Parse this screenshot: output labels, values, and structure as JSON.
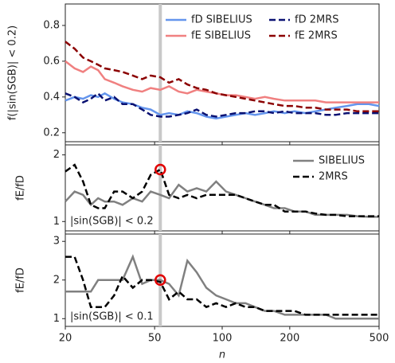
{
  "chart_data": [
    {
      "type": "line",
      "ylabel": "f(|sin(SGB)| < 0.2)",
      "xscale": "log",
      "xlim": [
        20,
        500
      ],
      "xticks": [
        20,
        50,
        100,
        200,
        500
      ],
      "ylim": [
        0.15,
        0.92
      ],
      "yticks": [
        0.2,
        0.4,
        0.6,
        0.8
      ],
      "vline": 53,
      "legend": "top-right",
      "x": [
        20,
        22,
        24,
        26,
        28,
        30,
        33,
        36,
        40,
        44,
        48,
        53,
        58,
        64,
        70,
        77,
        85,
        94,
        104,
        115,
        127,
        140,
        155,
        170,
        190,
        210,
        235,
        260,
        290,
        320,
        360,
        400,
        450,
        500
      ],
      "series": [
        {
          "name": "fD SIBELIUS",
          "color": "#6495ed",
          "dashed": false,
          "values": [
            0.38,
            0.4,
            0.39,
            0.41,
            0.4,
            0.42,
            0.39,
            0.37,
            0.36,
            0.34,
            0.33,
            0.3,
            0.31,
            0.3,
            0.32,
            0.31,
            0.29,
            0.28,
            0.29,
            0.3,
            0.31,
            0.3,
            0.31,
            0.32,
            0.31,
            0.32,
            0.31,
            0.32,
            0.33,
            0.34,
            0.35,
            0.36,
            0.36,
            0.35
          ]
        },
        {
          "name": "fE SIBELIUS",
          "color": "#f08080",
          "dashed": false,
          "values": [
            0.6,
            0.56,
            0.54,
            0.57,
            0.55,
            0.5,
            0.48,
            0.46,
            0.44,
            0.43,
            0.45,
            0.44,
            0.46,
            0.43,
            0.42,
            0.44,
            0.43,
            0.42,
            0.41,
            0.41,
            0.4,
            0.39,
            0.4,
            0.39,
            0.38,
            0.38,
            0.38,
            0.38,
            0.37,
            0.37,
            0.37,
            0.37,
            0.37,
            0.37
          ]
        },
        {
          "name": "fD 2MRS",
          "color": "#0a1172",
          "dashed": true,
          "values": [
            0.42,
            0.4,
            0.37,
            0.39,
            0.42,
            0.38,
            0.4,
            0.36,
            0.36,
            0.33,
            0.3,
            0.29,
            0.29,
            0.3,
            0.31,
            0.33,
            0.3,
            0.29,
            0.3,
            0.31,
            0.31,
            0.32,
            0.32,
            0.31,
            0.32,
            0.31,
            0.31,
            0.31,
            0.3,
            0.3,
            0.31,
            0.31,
            0.31,
            0.31
          ]
        },
        {
          "name": "fE 2MRS",
          "color": "#8b0000",
          "dashed": true,
          "values": [
            0.71,
            0.67,
            0.62,
            0.6,
            0.58,
            0.56,
            0.55,
            0.54,
            0.52,
            0.5,
            0.52,
            0.51,
            0.48,
            0.5,
            0.47,
            0.45,
            0.44,
            0.42,
            0.41,
            0.4,
            0.39,
            0.38,
            0.37,
            0.36,
            0.35,
            0.35,
            0.34,
            0.34,
            0.33,
            0.33,
            0.33,
            0.32,
            0.32,
            0.32
          ]
        }
      ]
    },
    {
      "type": "line",
      "ylabel": "fE/fD",
      "annotation": "|sin(SGB)| < 0.2",
      "xscale": "log",
      "xlim": [
        20,
        500
      ],
      "xticks": [
        20,
        50,
        100,
        200,
        500
      ],
      "ylim": [
        0.86,
        2.15
      ],
      "yticks": [
        1,
        2
      ],
      "vline": 53,
      "highlight": {
        "x": 53,
        "y": 1.78
      },
      "legend": "top-right",
      "x": [
        20,
        22,
        24,
        26,
        28,
        30,
        33,
        36,
        40,
        44,
        48,
        53,
        58,
        64,
        70,
        77,
        85,
        94,
        104,
        115,
        127,
        140,
        155,
        170,
        190,
        210,
        235,
        260,
        290,
        320,
        360,
        400,
        450,
        500
      ],
      "series": [
        {
          "name": "SIBELIUS",
          "color": "#808080",
          "dashed": false,
          "values": [
            1.3,
            1.45,
            1.4,
            1.25,
            1.35,
            1.3,
            1.3,
            1.25,
            1.35,
            1.3,
            1.45,
            1.4,
            1.35,
            1.55,
            1.45,
            1.5,
            1.45,
            1.6,
            1.45,
            1.4,
            1.35,
            1.3,
            1.25,
            1.2,
            1.2,
            1.15,
            1.15,
            1.1,
            1.1,
            1.1,
            1.1,
            1.08,
            1.07,
            1.07
          ]
        },
        {
          "name": "2MRS",
          "color": "#000000",
          "dashed": true,
          "values": [
            1.75,
            1.85,
            1.6,
            1.25,
            1.2,
            1.2,
            1.45,
            1.45,
            1.35,
            1.45,
            1.7,
            1.78,
            1.4,
            1.35,
            1.4,
            1.35,
            1.4,
            1.4,
            1.4,
            1.4,
            1.35,
            1.3,
            1.25,
            1.25,
            1.15,
            1.15,
            1.15,
            1.12,
            1.1,
            1.1,
            1.08,
            1.08,
            1.08,
            1.08
          ]
        }
      ]
    },
    {
      "type": "line",
      "ylabel": "fE/fD",
      "xlabel": "n",
      "annotation": "|sin(SGB)| < 0.1",
      "xscale": "log",
      "xlim": [
        20,
        500
      ],
      "xticks": [
        20,
        50,
        100,
        200,
        500
      ],
      "ylim": [
        0.8,
        3.19
      ],
      "yticks": [
        1,
        2,
        3
      ],
      "vline": 53,
      "highlight": {
        "x": 53,
        "y": 2.0
      },
      "x": [
        20,
        22,
        24,
        26,
        28,
        30,
        33,
        36,
        40,
        44,
        48,
        53,
        58,
        64,
        70,
        77,
        85,
        94,
        104,
        115,
        127,
        140,
        155,
        170,
        190,
        210,
        235,
        260,
        290,
        320,
        360,
        400,
        450,
        500
      ],
      "series": [
        {
          "color": "#808080",
          "dashed": false,
          "values": [
            1.7,
            1.7,
            1.7,
            1.7,
            2.0,
            2.0,
            2.0,
            2.0,
            2.6,
            1.9,
            2.0,
            2.0,
            1.9,
            1.6,
            2.5,
            2.2,
            1.8,
            1.6,
            1.5,
            1.4,
            1.4,
            1.3,
            1.2,
            1.2,
            1.1,
            1.1,
            1.1,
            1.1,
            1.1,
            1.0,
            1.0,
            1.0,
            1.0,
            1.0
          ]
        },
        {
          "color": "#000000",
          "dashed": true,
          "values": [
            2.6,
            2.6,
            2.0,
            1.3,
            1.3,
            1.3,
            1.6,
            2.1,
            1.8,
            2.0,
            2.0,
            1.95,
            1.5,
            1.7,
            1.5,
            1.5,
            1.3,
            1.4,
            1.3,
            1.4,
            1.3,
            1.3,
            1.2,
            1.2,
            1.2,
            1.2,
            1.1,
            1.1,
            1.1,
            1.1,
            1.1,
            1.1,
            1.1,
            1.1
          ]
        }
      ]
    }
  ]
}
